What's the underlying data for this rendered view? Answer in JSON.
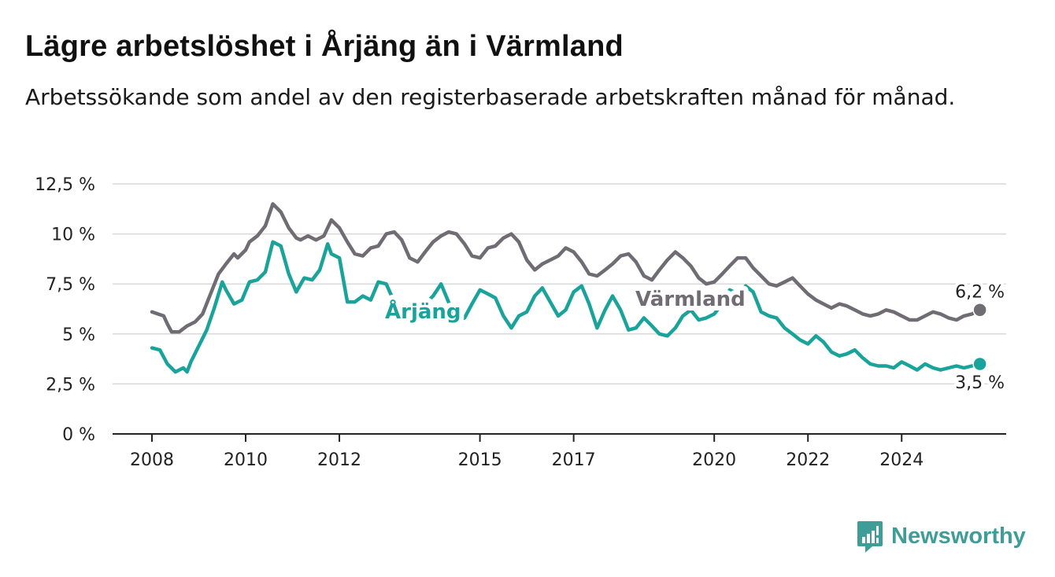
{
  "title": "Lägre arbetslöshet i Årjäng än i Värmland",
  "subtitle": "Arbetssökande som andel av den registerbaserade arbetskraften månad för månad.",
  "brand": {
    "name": "Newsworthy",
    "icon": "newsworthy-logo-icon",
    "color": "#3e9d96"
  },
  "colors": {
    "arjang": "#1aa39a",
    "varmland": "#6f6d73",
    "grid": "#d9d9d9",
    "axis": "#222222"
  },
  "chart_data": {
    "type": "line",
    "title": "Lägre arbetslöshet i Årjäng än i Värmland",
    "xlabel": "",
    "ylabel": "",
    "ylim": [
      0,
      12.5
    ],
    "yticks": [
      0,
      2.5,
      5,
      7.5,
      10,
      12.5
    ],
    "ytick_labels": [
      "0 %",
      "2,5 %",
      "5 %",
      "7,5 %",
      "10 %",
      "12,5 %"
    ],
    "xlim": [
      2008,
      2025.85
    ],
    "xticks": [
      2008,
      2010,
      2012,
      2015,
      2017,
      2020,
      2022,
      2024
    ],
    "xtick_labels": [
      "2008",
      "2010",
      "2012",
      "2015",
      "2017",
      "2020",
      "2022",
      "2024"
    ],
    "grid": true,
    "legend": "inline labels",
    "series": [
      {
        "name": "Värmland",
        "color": "#6f6d73",
        "end_label": "6,2 %",
        "points": [
          [
            2008.0,
            6.1
          ],
          [
            2008.25,
            5.9
          ],
          [
            2008.33,
            5.5
          ],
          [
            2008.42,
            5.1
          ],
          [
            2008.58,
            5.1
          ],
          [
            2008.75,
            5.4
          ],
          [
            2008.92,
            5.6
          ],
          [
            2009.08,
            6.0
          ],
          [
            2009.25,
            7.0
          ],
          [
            2009.42,
            8.0
          ],
          [
            2009.58,
            8.5
          ],
          [
            2009.75,
            9.0
          ],
          [
            2009.83,
            8.8
          ],
          [
            2010.0,
            9.2
          ],
          [
            2010.08,
            9.6
          ],
          [
            2010.25,
            9.9
          ],
          [
            2010.42,
            10.4
          ],
          [
            2010.58,
            11.5
          ],
          [
            2010.75,
            11.1
          ],
          [
            2010.92,
            10.3
          ],
          [
            2011.08,
            9.8
          ],
          [
            2011.17,
            9.7
          ],
          [
            2011.33,
            9.9
          ],
          [
            2011.5,
            9.7
          ],
          [
            2011.67,
            9.9
          ],
          [
            2011.83,
            10.7
          ],
          [
            2012.0,
            10.3
          ],
          [
            2012.17,
            9.6
          ],
          [
            2012.33,
            9.0
          ],
          [
            2012.5,
            8.9
          ],
          [
            2012.67,
            9.3
          ],
          [
            2012.83,
            9.4
          ],
          [
            2013.0,
            10.0
          ],
          [
            2013.17,
            10.1
          ],
          [
            2013.33,
            9.7
          ],
          [
            2013.5,
            8.8
          ],
          [
            2013.67,
            8.6
          ],
          [
            2013.83,
            9.1
          ],
          [
            2014.0,
            9.6
          ],
          [
            2014.17,
            9.9
          ],
          [
            2014.33,
            10.1
          ],
          [
            2014.5,
            10.0
          ],
          [
            2014.67,
            9.5
          ],
          [
            2014.83,
            8.9
          ],
          [
            2015.0,
            8.8
          ],
          [
            2015.17,
            9.3
          ],
          [
            2015.33,
            9.4
          ],
          [
            2015.5,
            9.8
          ],
          [
            2015.67,
            10.0
          ],
          [
            2015.83,
            9.6
          ],
          [
            2016.0,
            8.7
          ],
          [
            2016.17,
            8.2
          ],
          [
            2016.33,
            8.5
          ],
          [
            2016.5,
            8.7
          ],
          [
            2016.67,
            8.9
          ],
          [
            2016.83,
            9.3
          ],
          [
            2017.0,
            9.1
          ],
          [
            2017.17,
            8.6
          ],
          [
            2017.33,
            8.0
          ],
          [
            2017.5,
            7.9
          ],
          [
            2017.67,
            8.2
          ],
          [
            2017.83,
            8.5
          ],
          [
            2018.0,
            8.9
          ],
          [
            2018.17,
            9.0
          ],
          [
            2018.33,
            8.6
          ],
          [
            2018.5,
            7.9
          ],
          [
            2018.67,
            7.7
          ],
          [
            2018.83,
            8.2
          ],
          [
            2019.0,
            8.7
          ],
          [
            2019.17,
            9.1
          ],
          [
            2019.33,
            8.8
          ],
          [
            2019.5,
            8.4
          ],
          [
            2019.67,
            7.8
          ],
          [
            2019.83,
            7.5
          ],
          [
            2020.0,
            7.6
          ],
          [
            2020.17,
            8.0
          ],
          [
            2020.33,
            8.4
          ],
          [
            2020.5,
            8.8
          ],
          [
            2020.67,
            8.8
          ],
          [
            2020.83,
            8.3
          ],
          [
            2021.0,
            7.9
          ],
          [
            2021.17,
            7.5
          ],
          [
            2021.33,
            7.4
          ],
          [
            2021.5,
            7.6
          ],
          [
            2021.67,
            7.8
          ],
          [
            2021.83,
            7.4
          ],
          [
            2022.0,
            7.0
          ],
          [
            2022.17,
            6.7
          ],
          [
            2022.33,
            6.5
          ],
          [
            2022.5,
            6.3
          ],
          [
            2022.67,
            6.5
          ],
          [
            2022.83,
            6.4
          ],
          [
            2023.0,
            6.2
          ],
          [
            2023.17,
            6.0
          ],
          [
            2023.33,
            5.9
          ],
          [
            2023.5,
            6.0
          ],
          [
            2023.67,
            6.2
          ],
          [
            2023.83,
            6.1
          ],
          [
            2024.0,
            5.9
          ],
          [
            2024.17,
            5.7
          ],
          [
            2024.33,
            5.7
          ],
          [
            2024.5,
            5.9
          ],
          [
            2024.67,
            6.1
          ],
          [
            2024.83,
            6.0
          ],
          [
            2025.0,
            5.8
          ],
          [
            2025.17,
            5.7
          ],
          [
            2025.33,
            5.9
          ],
          [
            2025.5,
            6.0
          ],
          [
            2025.67,
            6.2
          ]
        ]
      },
      {
        "name": "Årjäng",
        "color": "#1aa39a",
        "end_label": "3,5 %",
        "points": [
          [
            2008.0,
            4.3
          ],
          [
            2008.17,
            4.2
          ],
          [
            2008.33,
            3.5
          ],
          [
            2008.5,
            3.1
          ],
          [
            2008.67,
            3.3
          ],
          [
            2008.75,
            3.1
          ],
          [
            2008.83,
            3.6
          ],
          [
            2009.0,
            4.4
          ],
          [
            2009.17,
            5.2
          ],
          [
            2009.33,
            6.3
          ],
          [
            2009.5,
            7.6
          ],
          [
            2009.58,
            7.2
          ],
          [
            2009.75,
            6.5
          ],
          [
            2009.92,
            6.7
          ],
          [
            2010.08,
            7.6
          ],
          [
            2010.25,
            7.7
          ],
          [
            2010.42,
            8.1
          ],
          [
            2010.58,
            9.6
          ],
          [
            2010.75,
            9.4
          ],
          [
            2010.92,
            8.0
          ],
          [
            2011.08,
            7.1
          ],
          [
            2011.25,
            7.8
          ],
          [
            2011.42,
            7.7
          ],
          [
            2011.58,
            8.2
          ],
          [
            2011.75,
            9.5
          ],
          [
            2011.83,
            9.0
          ],
          [
            2012.0,
            8.8
          ],
          [
            2012.17,
            6.6
          ],
          [
            2012.33,
            6.6
          ],
          [
            2012.5,
            6.9
          ],
          [
            2012.67,
            6.7
          ],
          [
            2012.83,
            7.6
          ],
          [
            2013.0,
            7.5
          ],
          [
            2013.17,
            6.6
          ],
          [
            2013.33,
            5.8
          ],
          [
            2013.5,
            5.5
          ],
          [
            2013.67,
            6.2
          ],
          [
            2013.83,
            6.5
          ],
          [
            2014.0,
            6.9
          ],
          [
            2014.17,
            7.5
          ],
          [
            2014.33,
            6.6
          ],
          [
            2014.5,
            5.7
          ],
          [
            2014.67,
            5.8
          ],
          [
            2014.83,
            6.5
          ],
          [
            2015.0,
            7.2
          ],
          [
            2015.17,
            7.0
          ],
          [
            2015.33,
            6.8
          ],
          [
            2015.5,
            5.9
          ],
          [
            2015.67,
            5.3
          ],
          [
            2015.83,
            5.9
          ],
          [
            2016.0,
            6.1
          ],
          [
            2016.17,
            6.9
          ],
          [
            2016.33,
            7.3
          ],
          [
            2016.5,
            6.6
          ],
          [
            2016.67,
            5.9
          ],
          [
            2016.83,
            6.2
          ],
          [
            2017.0,
            7.1
          ],
          [
            2017.17,
            7.4
          ],
          [
            2017.33,
            6.5
          ],
          [
            2017.5,
            5.3
          ],
          [
            2017.67,
            6.2
          ],
          [
            2017.83,
            6.9
          ],
          [
            2018.0,
            6.2
          ],
          [
            2018.17,
            5.2
          ],
          [
            2018.33,
            5.3
          ],
          [
            2018.5,
            5.8
          ],
          [
            2018.67,
            5.4
          ],
          [
            2018.83,
            5.0
          ],
          [
            2019.0,
            4.9
          ],
          [
            2019.17,
            5.3
          ],
          [
            2019.33,
            5.9
          ],
          [
            2019.5,
            6.2
          ],
          [
            2019.67,
            5.7
          ],
          [
            2019.83,
            5.8
          ],
          [
            2020.0,
            6.0
          ],
          [
            2020.17,
            6.5
          ],
          [
            2020.33,
            7.2
          ],
          [
            2020.5,
            7.0
          ],
          [
            2020.67,
            7.4
          ],
          [
            2020.83,
            7.1
          ],
          [
            2021.0,
            6.1
          ],
          [
            2021.17,
            5.9
          ],
          [
            2021.33,
            5.8
          ],
          [
            2021.5,
            5.3
          ],
          [
            2021.67,
            5.0
          ],
          [
            2021.83,
            4.7
          ],
          [
            2022.0,
            4.5
          ],
          [
            2022.17,
            4.9
          ],
          [
            2022.33,
            4.6
          ],
          [
            2022.5,
            4.1
          ],
          [
            2022.67,
            3.9
          ],
          [
            2022.83,
            4.0
          ],
          [
            2023.0,
            4.2
          ],
          [
            2023.17,
            3.8
          ],
          [
            2023.33,
            3.5
          ],
          [
            2023.5,
            3.4
          ],
          [
            2023.67,
            3.4
          ],
          [
            2023.83,
            3.3
          ],
          [
            2024.0,
            3.6
          ],
          [
            2024.17,
            3.4
          ],
          [
            2024.33,
            3.2
          ],
          [
            2024.5,
            3.5
          ],
          [
            2024.67,
            3.3
          ],
          [
            2024.83,
            3.2
          ],
          [
            2025.0,
            3.3
          ],
          [
            2025.17,
            3.4
          ],
          [
            2025.33,
            3.3
          ],
          [
            2025.5,
            3.4
          ],
          [
            2025.67,
            3.5
          ]
        ]
      }
    ]
  }
}
